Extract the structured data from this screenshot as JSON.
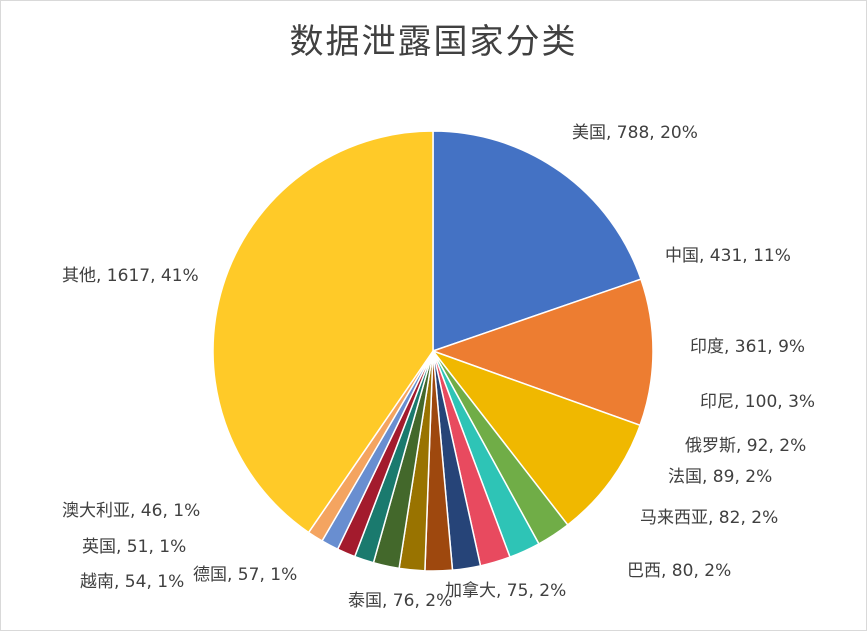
{
  "chart_data": {
    "type": "pie",
    "title": "数据泄露国家分类",
    "slices": [
      {
        "name": "美国",
        "value": 788,
        "percent": "20%",
        "color": "#4472C4"
      },
      {
        "name": "中国",
        "value": 431,
        "percent": "11%",
        "color": "#ED7D31"
      },
      {
        "name": "印度",
        "value": 361,
        "percent": "9%",
        "color": "#F0B800"
      },
      {
        "name": "印尼",
        "value": 100,
        "percent": "3%",
        "color": "#70AD47"
      },
      {
        "name": "俄罗斯",
        "value": 92,
        "percent": "2%",
        "color": "#2EC4B6"
      },
      {
        "name": "法国",
        "value": 89,
        "percent": "2%",
        "color": "#E84A5F"
      },
      {
        "name": "马来西亚",
        "value": 82,
        "percent": "2%",
        "color": "#264478"
      },
      {
        "name": "巴西",
        "value": 80,
        "percent": "2%",
        "color": "#9E480E"
      },
      {
        "name": "加拿大",
        "value": 75,
        "percent": "2%",
        "color": "#997300"
      },
      {
        "name": "泰国",
        "value": 76,
        "percent": "2%",
        "color": "#43682B"
      },
      {
        "name": "德国",
        "value": 57,
        "percent": "1%",
        "color": "#1A7A6E"
      },
      {
        "name": "越南",
        "value": 54,
        "percent": "1%",
        "color": "#A31B2D"
      },
      {
        "name": "英国",
        "value": 51,
        "percent": "1%",
        "color": "#698ED0"
      },
      {
        "name": "澳大利亚",
        "value": 46,
        "percent": "1%",
        "color": "#F4A460"
      },
      {
        "name": "其他",
        "value": 1617,
        "percent": "41%",
        "color": "#FFCA28"
      }
    ]
  }
}
